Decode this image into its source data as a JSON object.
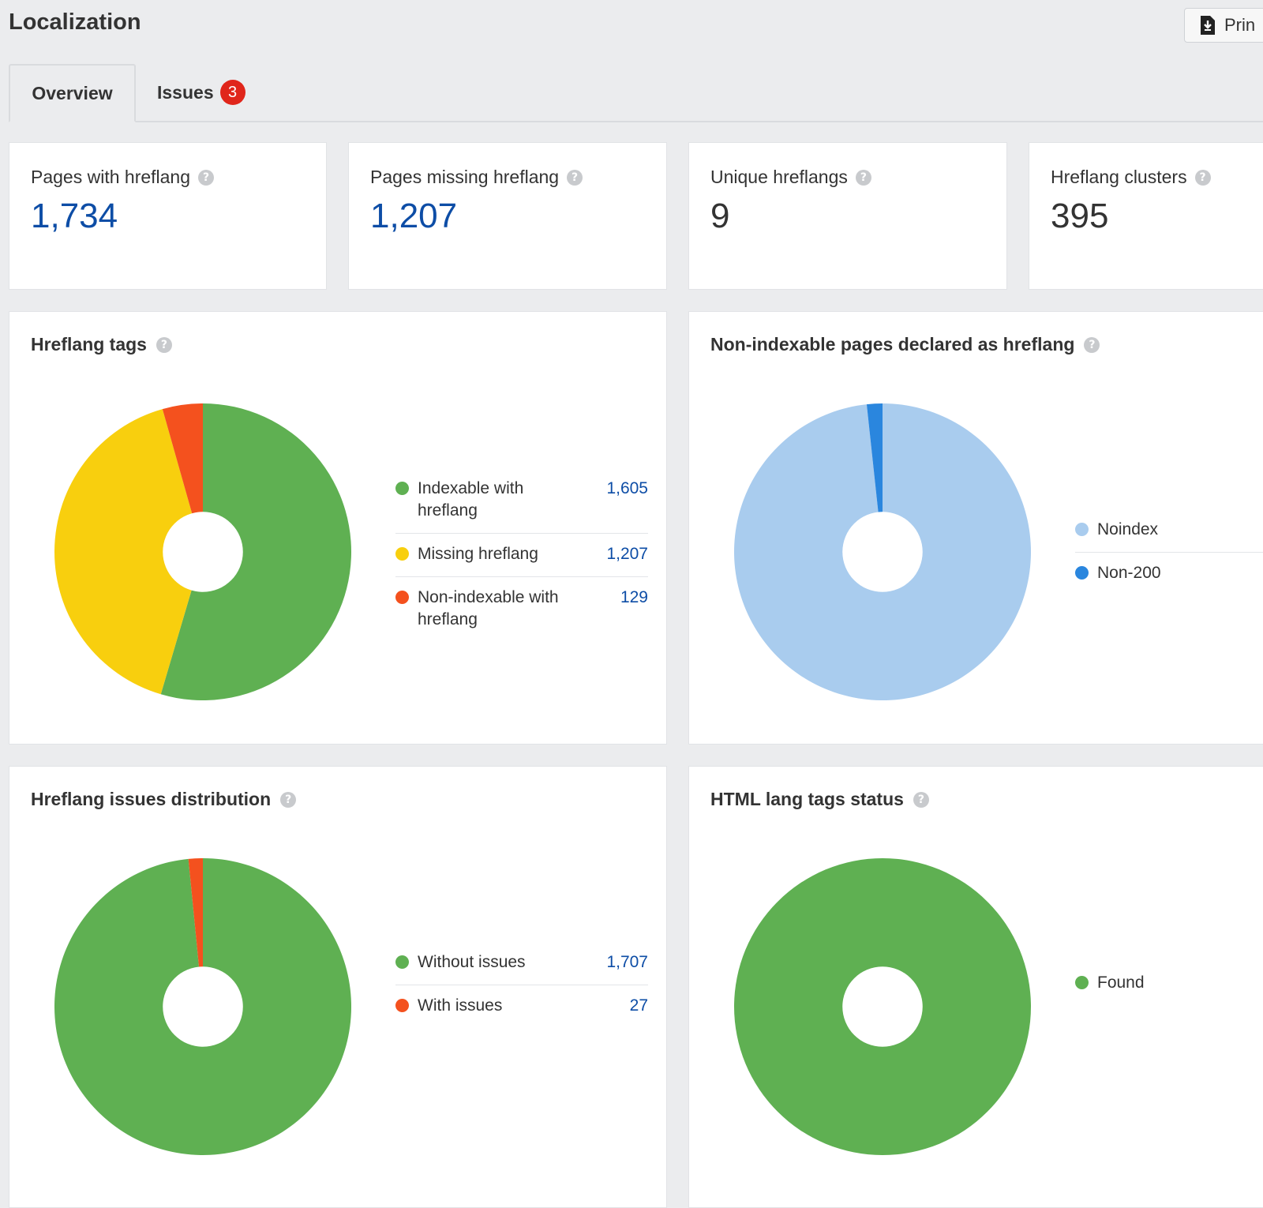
{
  "header": {
    "title": "Localization",
    "print_label": "Prin"
  },
  "tabs": {
    "overview_label": "Overview",
    "issues_label": "Issues",
    "issues_badge": "3"
  },
  "stats": [
    {
      "label": "Pages with hreflang",
      "value": "1,734",
      "linked": true
    },
    {
      "label": "Pages missing hreflang",
      "value": "1,207",
      "linked": true
    },
    {
      "label": "Unique hreflangs",
      "value": "9",
      "linked": false
    },
    {
      "label": "Hreflang clusters",
      "value": "395",
      "linked": false
    }
  ],
  "colors": {
    "green": "#5fb052",
    "yellow": "#f8cf0e",
    "orange": "#f4511e",
    "light_blue": "#a9ccee",
    "blue": "#2a86de",
    "link": "#0d4da6"
  },
  "panels": {
    "hreflang_tags": {
      "title": "Hreflang tags",
      "chart_data": {
        "type": "pie",
        "title": "Hreflang tags",
        "labels": [
          "Indexable with hreflang",
          "Missing hreflang",
          "Non-indexable with hreflang"
        ],
        "values": [
          1605,
          1207,
          129
        ],
        "display_values": [
          "1,605",
          "1,207",
          "129"
        ],
        "colors": [
          "#5fb052",
          "#f8cf0e",
          "#f4511e"
        ]
      }
    },
    "non_indexable": {
      "title": "Non-indexable pages declared as hreflang",
      "chart_data": {
        "type": "pie",
        "title": "Non-indexable pages declared as hreflang",
        "labels": [
          "Noindex",
          "Non-200"
        ],
        "values": [
          98.3,
          1.7
        ],
        "colors": [
          "#a9ccee",
          "#2a86de"
        ]
      }
    },
    "issues_distribution": {
      "title": "Hreflang issues distribution",
      "chart_data": {
        "type": "pie",
        "title": "Hreflang issues distribution",
        "labels": [
          "Without issues",
          "With issues"
        ],
        "values": [
          1707,
          27
        ],
        "display_values": [
          "1,707",
          "27"
        ],
        "colors": [
          "#5fb052",
          "#f4511e"
        ]
      }
    },
    "html_lang": {
      "title": "HTML lang tags status",
      "chart_data": {
        "type": "pie",
        "title": "HTML lang tags status",
        "labels": [
          "Found"
        ],
        "values": [
          100
        ],
        "colors": [
          "#5fb052"
        ]
      }
    }
  }
}
